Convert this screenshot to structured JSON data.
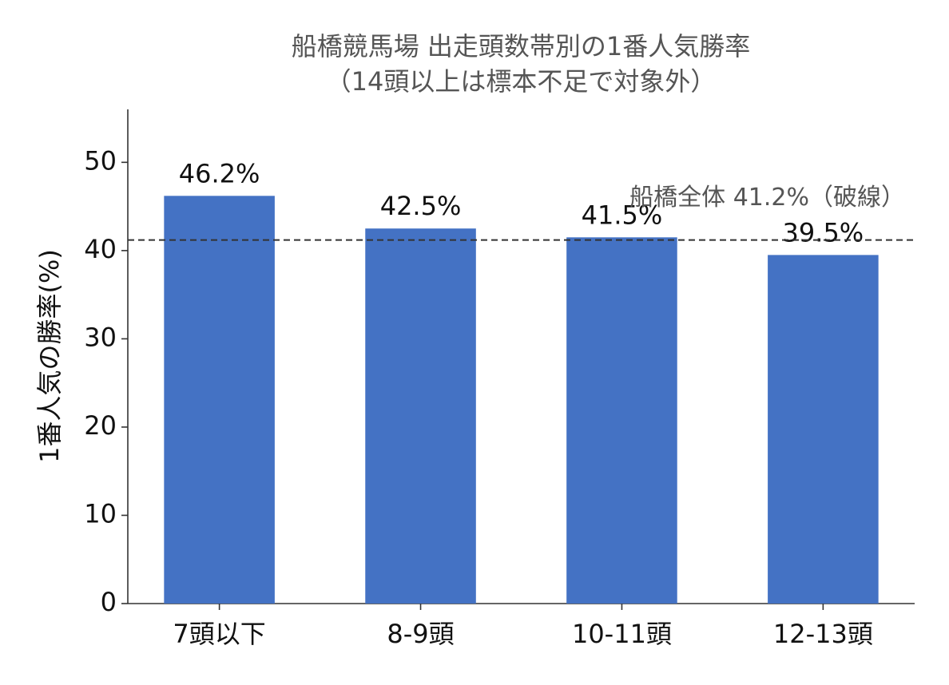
{
  "chart_data": {
    "type": "bar",
    "title": "船橋競馬場 出走頭数帯別の1番人気勝率",
    "subtitle": "（14頭以上は標本不足で対象外）",
    "y_label": "1番人気の勝率(%)",
    "categories": [
      "7頭以下",
      "8-9頭",
      "10-11頭",
      "12-13頭"
    ],
    "values": [
      46.2,
      42.5,
      41.5,
      39.5
    ],
    "value_labels": [
      "46.2%",
      "42.5%",
      "41.5%",
      "39.5%"
    ],
    "color": "#4472c4",
    "ylim": [
      0,
      56
    ],
    "yticks": [
      0,
      10,
      20,
      30,
      40,
      50
    ],
    "grid": false,
    "reference_line": {
      "value": 41.2,
      "label": "船橋全体 41.2%（破線）",
      "style": "dashed",
      "color": "#333333"
    }
  }
}
